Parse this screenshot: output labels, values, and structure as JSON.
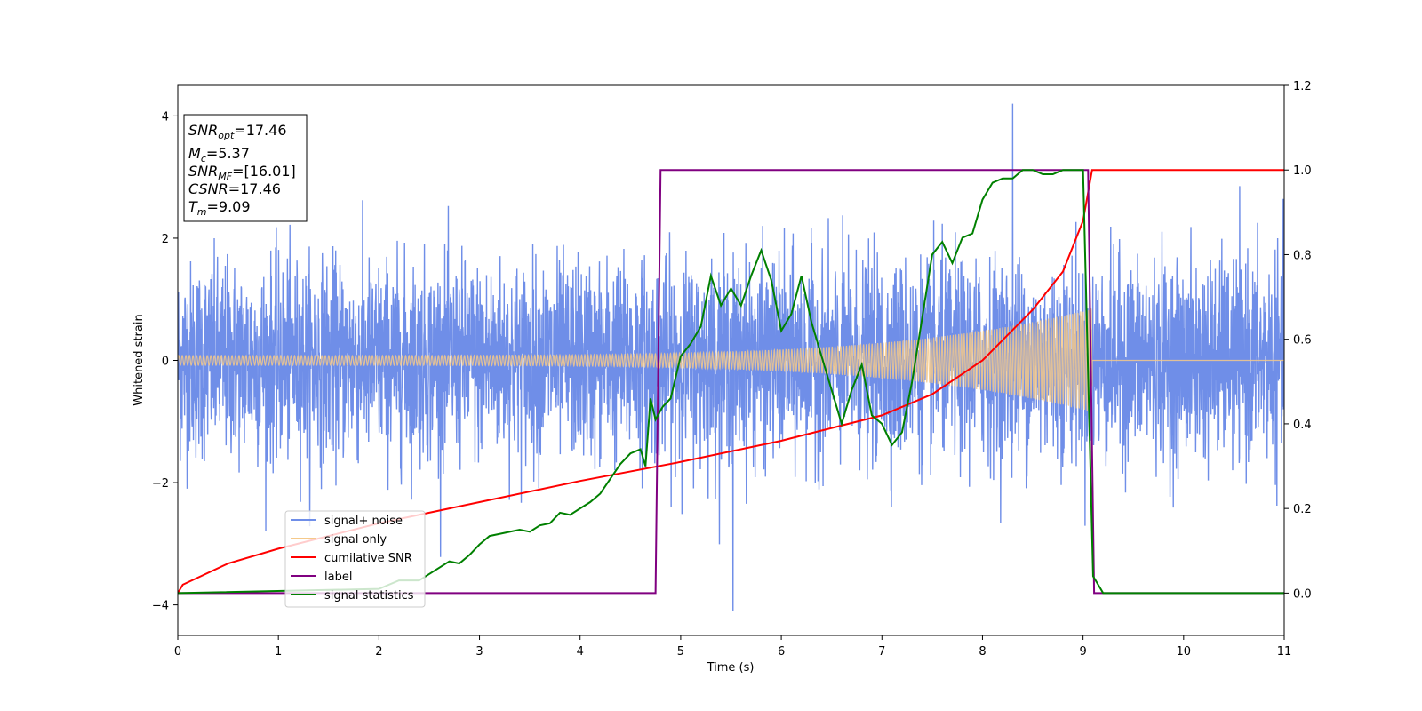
{
  "chart_data": {
    "type": "line",
    "xlabel": "Time (s)",
    "ylabel": "Whitened strain",
    "xlim": [
      0,
      11
    ],
    "ylim": [
      -4.5,
      4.5
    ],
    "y2lim": [
      -0.1,
      1.2
    ],
    "x_ticks": [
      "0",
      "1",
      "2",
      "3",
      "4",
      "5",
      "6",
      "7",
      "8",
      "9",
      "10",
      "11"
    ],
    "y_ticks": [
      "4",
      "2",
      "0",
      "−2",
      "−4"
    ],
    "y2_ticks": [
      "1.2",
      "1.0",
      "0.8",
      "0.6",
      "0.4",
      "0.2",
      "0.0"
    ],
    "grid": false,
    "legend_position": "lower-left",
    "annotation": {
      "lines": [
        {
          "main": "SNR",
          "sub": "opt",
          "rest": "=17.46"
        },
        {
          "main": "M",
          "sub": "c",
          "rest": "=5.37"
        },
        {
          "main": "SNR",
          "sub": "MF",
          "rest": "=[16.01]"
        },
        {
          "main": "CSNR",
          "sub": "",
          "rest": "=17.46"
        },
        {
          "main": "T",
          "sub": "m",
          "rest": "=9.09"
        }
      ]
    },
    "series": [
      {
        "name": "signal+ noise",
        "axis": "left",
        "color": "#6f8ee8",
        "description_values": {
          "noise_std": 0.8,
          "extreme_max": 4.2,
          "extreme_min": -4.1
        }
      },
      {
        "name": "signal only",
        "axis": "left",
        "color": "#f5c98a",
        "chirp": {
          "start": 0,
          "end": 9.09,
          "amp_start": 0.08,
          "amp_end": 0.85
        }
      },
      {
        "name": "cumilative SNR",
        "axis": "right",
        "color": "#ff0000",
        "x": [
          0,
          0.05,
          0.5,
          1,
          2,
          3,
          4,
          5,
          6,
          7,
          7.5,
          8,
          8.5,
          8.8,
          9.0,
          9.09,
          11
        ],
        "values": [
          0.0,
          0.02,
          0.07,
          0.105,
          0.165,
          0.215,
          0.265,
          0.31,
          0.36,
          0.42,
          0.47,
          0.55,
          0.67,
          0.76,
          0.88,
          1.0,
          1.0
        ]
      },
      {
        "name": "label",
        "axis": "right",
        "color": "#800080",
        "x": [
          0,
          4.75,
          4.8,
          9.05,
          9.11,
          11
        ],
        "values": [
          0,
          0,
          1,
          1,
          0,
          0
        ]
      },
      {
        "name": "signal statistics",
        "axis": "right",
        "color": "#008000",
        "x": [
          0,
          2.0,
          2.2,
          2.4,
          2.5,
          2.6,
          2.7,
          2.8,
          2.9,
          3.0,
          3.1,
          3.2,
          3.3,
          3.4,
          3.5,
          3.6,
          3.7,
          3.8,
          3.9,
          4.0,
          4.1,
          4.2,
          4.3,
          4.4,
          4.5,
          4.6,
          4.65,
          4.7,
          4.75,
          4.82,
          4.9,
          5.0,
          5.1,
          5.2,
          5.3,
          5.4,
          5.5,
          5.6,
          5.7,
          5.8,
          5.9,
          6.0,
          6.1,
          6.2,
          6.3,
          6.4,
          6.5,
          6.6,
          6.7,
          6.8,
          6.9,
          7.0,
          7.1,
          7.2,
          7.3,
          7.4,
          7.5,
          7.6,
          7.7,
          7.8,
          7.9,
          8.0,
          8.1,
          8.2,
          8.3,
          8.4,
          8.5,
          8.6,
          8.7,
          8.8,
          8.9,
          9.0,
          9.1,
          9.2,
          9.3,
          11
        ],
        "values": [
          0.0,
          0.01,
          0.03,
          0.03,
          0.045,
          0.06,
          0.075,
          0.07,
          0.09,
          0.115,
          0.135,
          0.14,
          0.145,
          0.15,
          0.145,
          0.16,
          0.165,
          0.19,
          0.185,
          0.2,
          0.215,
          0.235,
          0.27,
          0.305,
          0.33,
          0.34,
          0.3,
          0.46,
          0.41,
          0.44,
          0.46,
          0.56,
          0.59,
          0.63,
          0.75,
          0.68,
          0.72,
          0.68,
          0.75,
          0.81,
          0.74,
          0.62,
          0.66,
          0.75,
          0.64,
          0.56,
          0.48,
          0.4,
          0.48,
          0.54,
          0.42,
          0.4,
          0.35,
          0.38,
          0.5,
          0.65,
          0.8,
          0.83,
          0.78,
          0.84,
          0.85,
          0.93,
          0.97,
          0.98,
          0.98,
          1.0,
          1.0,
          0.99,
          0.99,
          1.0,
          1.0,
          1.0,
          0.04,
          0.0,
          0.0,
          0.0
        ]
      }
    ]
  }
}
